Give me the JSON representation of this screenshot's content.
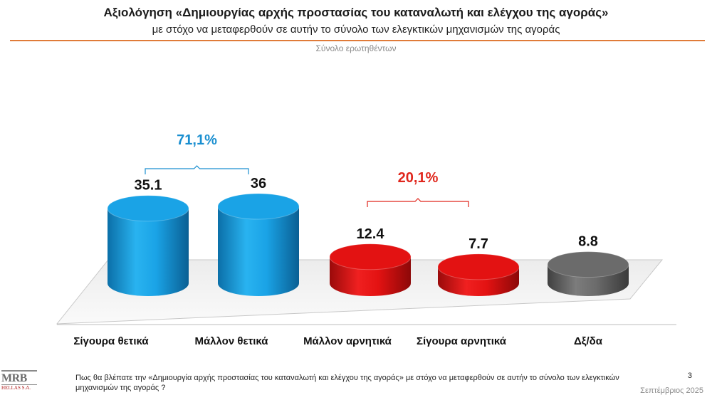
{
  "header": {
    "title": "Αξιολόγηση «Δημιουργίας αρχής προστασίας του καταναλωτή και ελέγχου της αγοράς»",
    "subtitle": "με στόχο να μεταφερθούν σε αυτήν το σύνολο των ελεγκτικών μηχανισμών της αγοράς",
    "base": "Σύνολο ερωτηθέντων"
  },
  "chart_data": {
    "type": "bar",
    "categories": [
      "Σίγουρα θετικά",
      "Μάλλον θετικά",
      "Μάλλον αρνητικά",
      "Σίγουρα αρνητικά",
      "Δξ/δα"
    ],
    "values": [
      35.1,
      36,
      12.4,
      7.7,
      8.8
    ],
    "value_labels": [
      "35.1",
      "36",
      "12.4",
      "7.7",
      "8.8"
    ],
    "colors": [
      "#1aa3e6",
      "#1aa3e6",
      "#e31212",
      "#e31212",
      "#6b6b6b"
    ],
    "groups": [
      {
        "label": "71,1%",
        "from": 0,
        "to": 1,
        "color": "#1a8fd0"
      },
      {
        "label": "20,1%",
        "from": 2,
        "to": 3,
        "color": "#e0261c"
      }
    ],
    "ylim": [
      0,
      40
    ]
  },
  "footer": {
    "question": "Πως θα βλέπατε την «Δημιουργία αρχής προστασίας του καταναλωτή και ελέγχου της αγοράς» με στόχο να μεταφερθούν σε αυτήν το σύνολο των ελεγκτικών μηχανισμών της αγοράς ?",
    "page": "3",
    "date": "Σεπτέμβριος 2025"
  },
  "logo": {
    "name": "MRB",
    "sub": "HELLAS S.A."
  }
}
